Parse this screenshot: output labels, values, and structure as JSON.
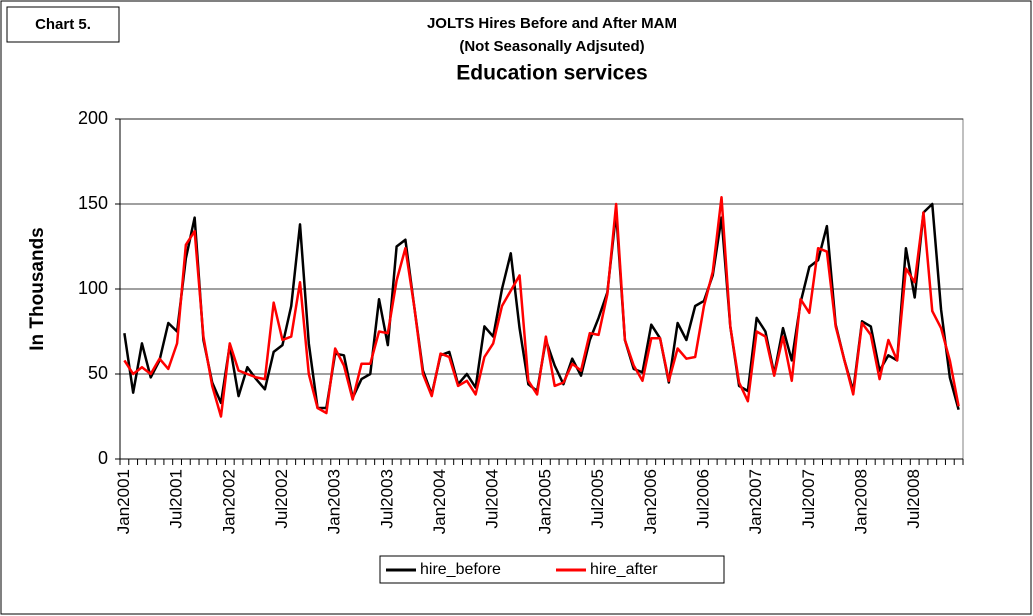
{
  "chart_data": {
    "type": "line",
    "label": "Chart 5.",
    "title": "JOLTS Hires Before and After MAM",
    "subtitle": "(Not Seasonally Adjsuted)",
    "heading": "Education services",
    "y_label": "In Thousands",
    "categories": [
      "Jan2001",
      null,
      null,
      null,
      null,
      null,
      "Jul2001",
      null,
      null,
      null,
      null,
      null,
      "Jan2002",
      null,
      null,
      null,
      null,
      null,
      "Jul2002",
      null,
      null,
      null,
      null,
      null,
      "Jan2003",
      null,
      null,
      null,
      null,
      null,
      "Jul2003",
      null,
      null,
      null,
      null,
      null,
      "Jan2004",
      null,
      null,
      null,
      null,
      null,
      "Jul2004",
      null,
      null,
      null,
      null,
      null,
      "Jan2005",
      null,
      null,
      null,
      null,
      null,
      "Jul2005",
      null,
      null,
      null,
      null,
      null,
      "Jan2006",
      null,
      null,
      null,
      null,
      null,
      "Jul2006",
      null,
      null,
      null,
      null,
      null,
      "Jan2007",
      null,
      null,
      null,
      null,
      null,
      "Jul2007",
      null,
      null,
      null,
      null,
      null,
      "Jan2008",
      null,
      null,
      null,
      null,
      null,
      "Jul2008",
      null,
      null,
      null,
      null,
      null
    ],
    "series": [
      {
        "name": "hire_before",
        "color": "#000000",
        "values": [
          74,
          39,
          68,
          48,
          58,
          80,
          75,
          118,
          142,
          70,
          45,
          33,
          67,
          37,
          54,
          47,
          41,
          63,
          67,
          90,
          138,
          68,
          30,
          30,
          62,
          61,
          36,
          47,
          50,
          94,
          67,
          125,
          129,
          90,
          52,
          38,
          61,
          63,
          44,
          50,
          42,
          78,
          72,
          100,
          121,
          77,
          44,
          40,
          70,
          55,
          44,
          59,
          49,
          70,
          83,
          98,
          145,
          70,
          53,
          51,
          79,
          71,
          45,
          80,
          70,
          90,
          93,
          108,
          142,
          78,
          43,
          40,
          83,
          75,
          50,
          77,
          58,
          92,
          113,
          117,
          137,
          79,
          58,
          40,
          81,
          78,
          52,
          61,
          58,
          124,
          95,
          145,
          150,
          88,
          48,
          29
        ]
      },
      {
        "name": "hire_after",
        "color": "#ff0000",
        "values": [
          58,
          50,
          54,
          50,
          59,
          53,
          68,
          126,
          134,
          72,
          43,
          25,
          68,
          52,
          50,
          48,
          47,
          92,
          70,
          72,
          104,
          50,
          30,
          27,
          65,
          55,
          35,
          56,
          56,
          75,
          74,
          105,
          124,
          90,
          50,
          37,
          62,
          60,
          43,
          46,
          38,
          60,
          68,
          90,
          99,
          108,
          46,
          38,
          72,
          43,
          45,
          56,
          52,
          74,
          73,
          97,
          150,
          70,
          55,
          46,
          71,
          71,
          46,
          65,
          59,
          60,
          90,
          110,
          154,
          78,
          45,
          34,
          75,
          72,
          49,
          72,
          46,
          94,
          86,
          124,
          122,
          78,
          58,
          38,
          80,
          73,
          47,
          70,
          58,
          112,
          104,
          145,
          87,
          77,
          58,
          31
        ]
      }
    ],
    "ylim": [
      0,
      200
    ],
    "yticks": [
      0,
      50,
      100,
      150,
      200
    ],
    "grid": true,
    "legend": "bottom"
  }
}
